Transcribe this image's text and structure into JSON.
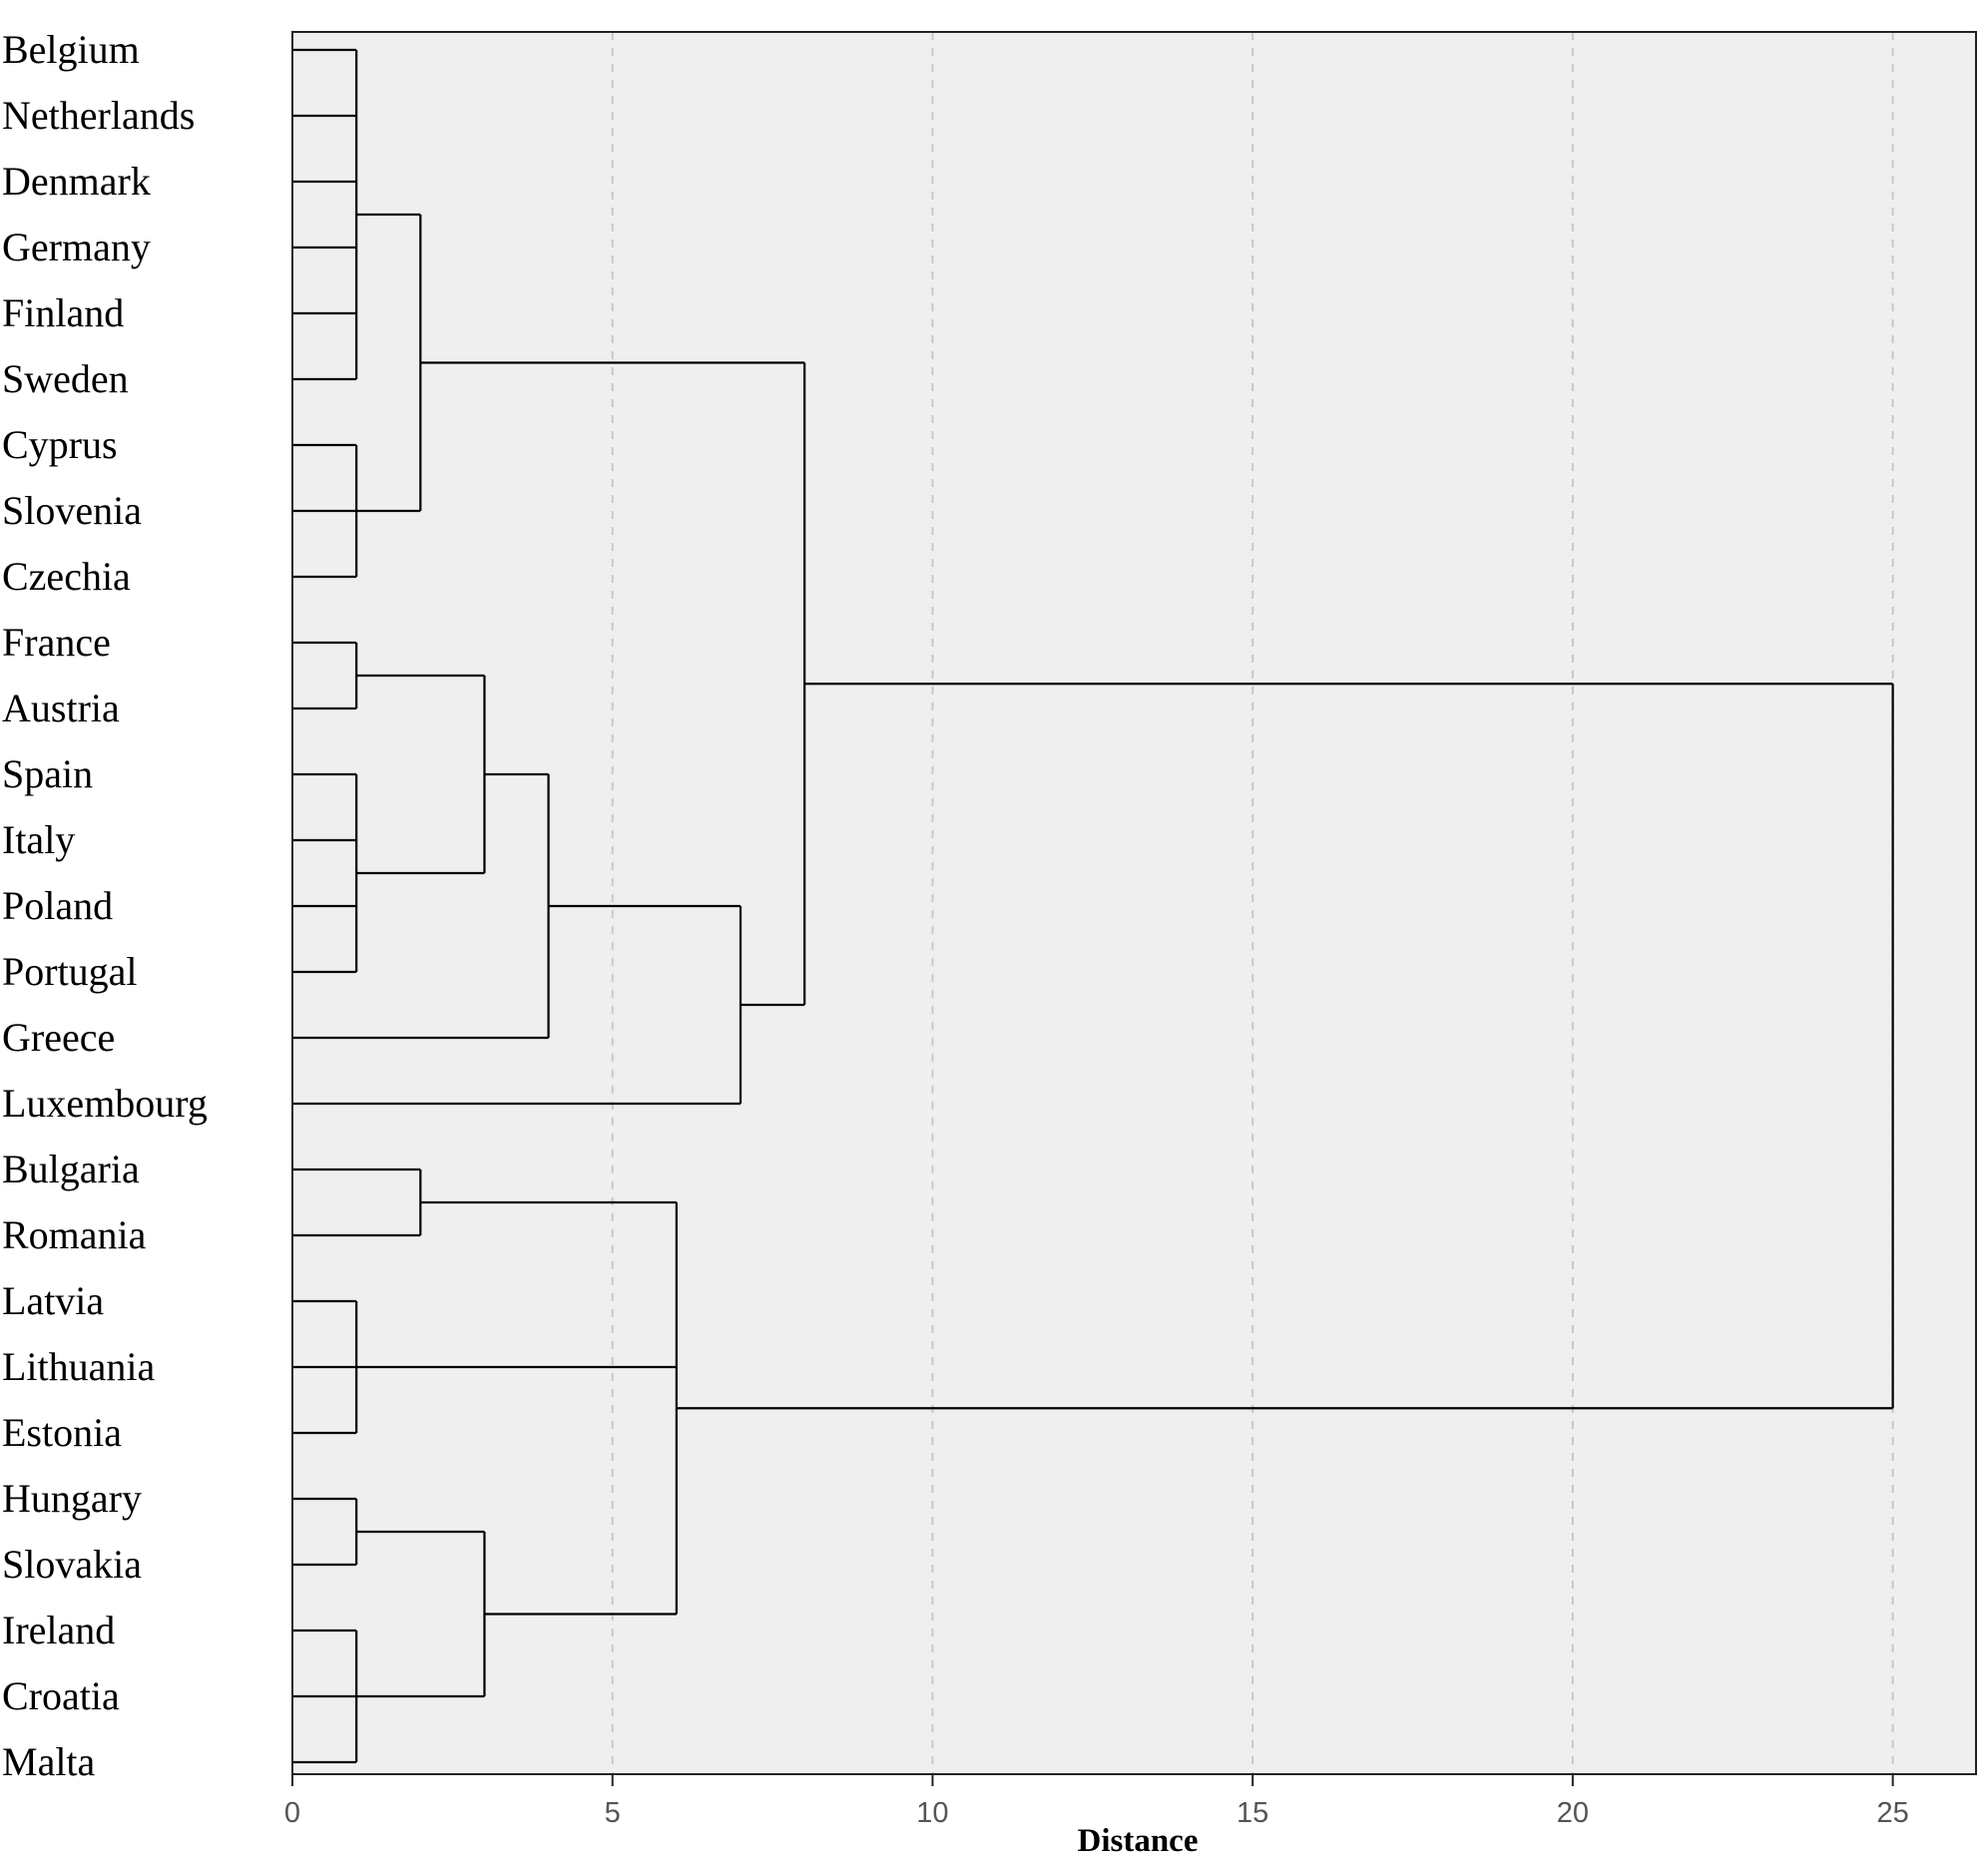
{
  "chart_data": {
    "type": "dendrogram",
    "orientation": "horizontal",
    "xlabel": "Distance",
    "xlim": [
      0,
      26.3
    ],
    "xticks": [
      0,
      5,
      10,
      15,
      20,
      25
    ],
    "grid": "dashed vertical",
    "leaves": [
      "Belgium",
      "Netherlands",
      "Denmark",
      "Germany",
      "Finland",
      "Sweden",
      "Cyprus",
      "Slovenia",
      "Czechia",
      "France",
      "Austria",
      "Spain",
      "Italy",
      "Poland",
      "Portugal",
      "Greece",
      "Luxembourg",
      "Bulgaria",
      "Romania",
      "Latvia",
      "Lithuania",
      "Estonia",
      "Hungary",
      "Slovakia",
      "Ireland",
      "Croatia",
      "Malta"
    ],
    "merges": [
      {
        "id": "A",
        "children": [
          "Belgium",
          "Netherlands",
          "Denmark",
          "Germany",
          "Finland",
          "Sweden"
        ],
        "height": 1
      },
      {
        "id": "B",
        "children": [
          "Cyprus",
          "Slovenia",
          "Czechia"
        ],
        "height": 1
      },
      {
        "id": "C",
        "children": [
          "A",
          "B"
        ],
        "height": 2
      },
      {
        "id": "D",
        "children": [
          "France",
          "Austria"
        ],
        "height": 1
      },
      {
        "id": "E",
        "children": [
          "Spain",
          "Italy",
          "Poland",
          "Portugal"
        ],
        "height": 1
      },
      {
        "id": "F",
        "children": [
          "D",
          "E"
        ],
        "height": 3
      },
      {
        "id": "G",
        "children": [
          "F",
          "Greece"
        ],
        "height": 4
      },
      {
        "id": "H",
        "children": [
          "G",
          "Luxembourg"
        ],
        "height": 7
      },
      {
        "id": "I",
        "children": [
          "C",
          "H"
        ],
        "height": 8
      },
      {
        "id": "J",
        "children": [
          "Bulgaria",
          "Romania"
        ],
        "height": 2
      },
      {
        "id": "K",
        "children": [
          "Latvia",
          "Lithuania",
          "Estonia"
        ],
        "height": 1
      },
      {
        "id": "L",
        "children": [
          "Hungary",
          "Slovakia"
        ],
        "height": 1
      },
      {
        "id": "M",
        "children": [
          "Ireland",
          "Croatia",
          "Malta"
        ],
        "height": 1
      },
      {
        "id": "N",
        "children": [
          "L",
          "M"
        ],
        "height": 3
      },
      {
        "id": "O",
        "children": [
          "J",
          "K",
          "N"
        ],
        "height": 6
      },
      {
        "id": "P",
        "children": [
          "I",
          "O"
        ],
        "height": 25
      }
    ]
  },
  "colors": {
    "plot_background": "#efefef",
    "link": "#000000",
    "grid": "#c8c8c8"
  }
}
